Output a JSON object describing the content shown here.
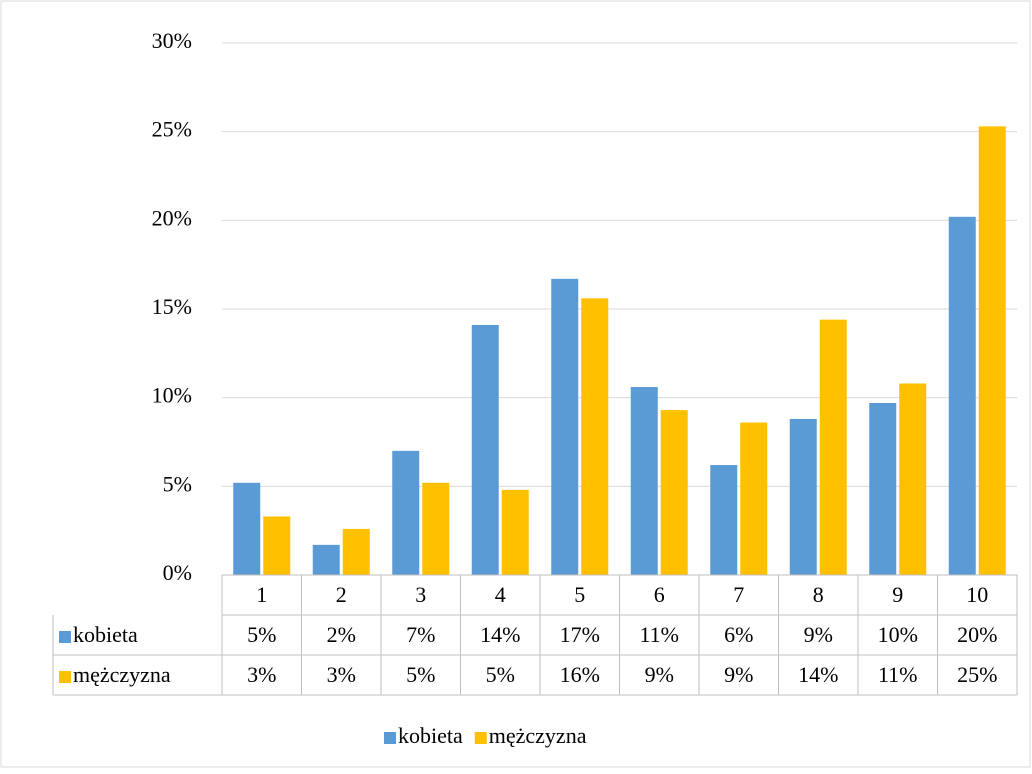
{
  "chart_data": {
    "type": "bar",
    "categories": [
      "1",
      "2",
      "3",
      "4",
      "5",
      "6",
      "7",
      "8",
      "9",
      "10"
    ],
    "series": [
      {
        "name": "kobieta",
        "color": "#5b9bd5",
        "values": [
          5.2,
          1.7,
          7.0,
          14.1,
          16.7,
          10.6,
          6.2,
          8.8,
          9.7,
          20.2
        ],
        "value_labels": [
          "5%",
          "2%",
          "7%",
          "14%",
          "17%",
          "11%",
          "6%",
          "9%",
          "10%",
          "20%"
        ]
      },
      {
        "name": "mężczyzna",
        "color": "#ffc000",
        "values": [
          3.3,
          2.6,
          5.2,
          4.8,
          15.6,
          9.3,
          8.6,
          14.4,
          10.8,
          25.3
        ],
        "value_labels": [
          "3%",
          "3%",
          "5%",
          "5%",
          "16%",
          "9%",
          "9%",
          "14%",
          "11%",
          "25%"
        ]
      }
    ],
    "ylim": [
      0,
      30
    ],
    "yticks": [
      {
        "value": 0,
        "label": "0%"
      },
      {
        "value": 5,
        "label": "5%"
      },
      {
        "value": 10,
        "label": "10%"
      },
      {
        "value": 15,
        "label": "15%"
      },
      {
        "value": 20,
        "label": "20%"
      },
      {
        "value": 25,
        "label": "25%"
      },
      {
        "value": 30,
        "label": "30%"
      }
    ],
    "grid": true
  }
}
